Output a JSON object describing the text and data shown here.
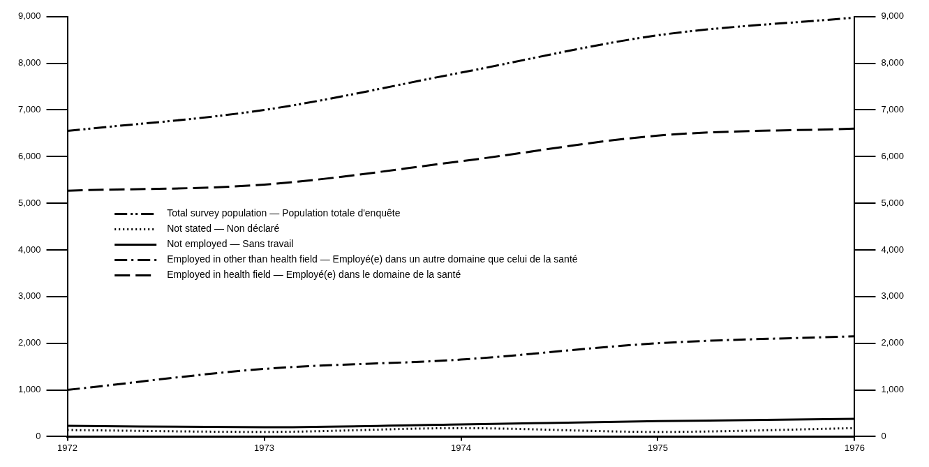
{
  "chart_data": {
    "type": "line",
    "categories": [
      "1972",
      "1973",
      "1974",
      "1975",
      "1976"
    ],
    "series": [
      {
        "name": "Total survey population — Population totale d'enquête",
        "color": "#000000",
        "line_style": "dashdotdot",
        "values": [
          6550,
          7000,
          7800,
          8600,
          8980
        ]
      },
      {
        "name": "Not stated — Non déclaré",
        "color": "#000000",
        "line_style": "dotted",
        "values": [
          140,
          100,
          180,
          100,
          180
        ]
      },
      {
        "name": "Not employed — Sans travail",
        "color": "#000000",
        "line_style": "solid",
        "values": [
          230,
          200,
          260,
          330,
          380
        ]
      },
      {
        "name": "Employed in other than health field — Employé(e) dans un autre domaine que celui de la santé",
        "color": "#000000",
        "line_style": "dashdot",
        "values": [
          1000,
          1450,
          1650,
          2000,
          2150
        ]
      },
      {
        "name": "Employed in health field — Employé(e) dans le domaine de la santé",
        "color": "#000000",
        "line_style": "dashed",
        "values": [
          5270,
          5400,
          5900,
          6450,
          6600
        ]
      }
    ],
    "ylim": [
      0,
      9000
    ],
    "yticks": [
      {
        "value": 0,
        "label": "0"
      },
      {
        "value": 1000,
        "label": "1,000"
      },
      {
        "value": 2000,
        "label": "2,000"
      },
      {
        "value": 3000,
        "label": "3,000"
      },
      {
        "value": 4000,
        "label": "4,000"
      },
      {
        "value": 5000,
        "label": "5,000"
      },
      {
        "value": 6000,
        "label": "6,000"
      },
      {
        "value": 7000,
        "label": "7,000"
      },
      {
        "value": 8000,
        "label": "8,000"
      },
      {
        "value": 9000,
        "label": "9,000"
      }
    ],
    "y2lim": [
      0,
      9000
    ],
    "y2ticks": [
      {
        "value": 0,
        "label": "0"
      },
      {
        "value": 1000,
        "label": "1,000"
      },
      {
        "value": 2000,
        "label": "2,000"
      },
      {
        "value": 3000,
        "label": "3,000"
      },
      {
        "value": 4000,
        "label": "4,000"
      },
      {
        "value": 5000,
        "label": "5,000"
      },
      {
        "value": 6000,
        "label": "6,000"
      },
      {
        "value": 7000,
        "label": "7,000"
      },
      {
        "value": 8000,
        "label": "8,000"
      },
      {
        "value": 9000,
        "label": "9,000"
      }
    ],
    "grid": false,
    "legend": "left",
    "marker": "none"
  }
}
